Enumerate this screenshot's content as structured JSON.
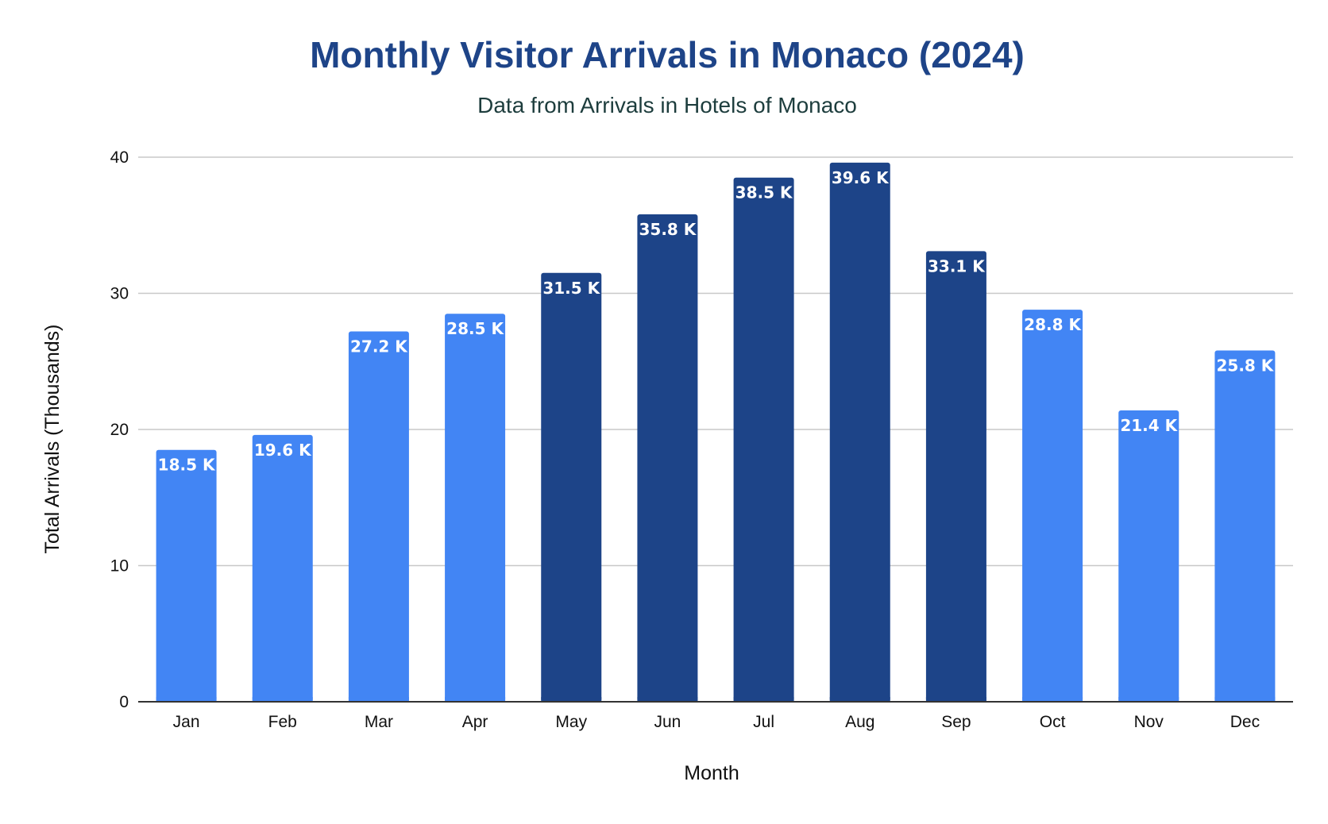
{
  "chart_data": {
    "type": "bar",
    "title": "Monthly Visitor Arrivals in Monaco (2024)",
    "subtitle": "Data from Arrivals in Hotels of Monaco",
    "xlabel": "Month",
    "ylabel": "Total Arrivals (Thousands)",
    "ylim": [
      0,
      40
    ],
    "yticks": [
      0,
      10,
      20,
      30,
      40
    ],
    "grid": true,
    "categories": [
      "Jan",
      "Feb",
      "Mar",
      "Apr",
      "May",
      "Jun",
      "Jul",
      "Aug",
      "Sep",
      "Oct",
      "Nov",
      "Dec"
    ],
    "values": [
      18.5,
      19.6,
      27.2,
      28.5,
      31.5,
      35.8,
      38.5,
      39.6,
      33.1,
      28.8,
      21.4,
      25.8
    ],
    "data_labels": [
      "18.5 K",
      "19.6 K",
      "27.2 K",
      "28.5 K",
      "31.5 K",
      "35.8 K",
      "38.5 K",
      "39.6 K",
      "33.1 K",
      "28.8 K",
      "21.4 K",
      "25.8 K"
    ],
    "bar_colors": [
      "#4285f4",
      "#4285f4",
      "#4285f4",
      "#4285f4",
      "#1d4488",
      "#1d4488",
      "#1d4488",
      "#1d4488",
      "#1d4488",
      "#4285f4",
      "#4285f4",
      "#4285f4"
    ],
    "colors": {
      "light": "#4285f4",
      "dark": "#1d4488",
      "title": "#1e4488",
      "subtitle": "#1d3d3d"
    }
  }
}
